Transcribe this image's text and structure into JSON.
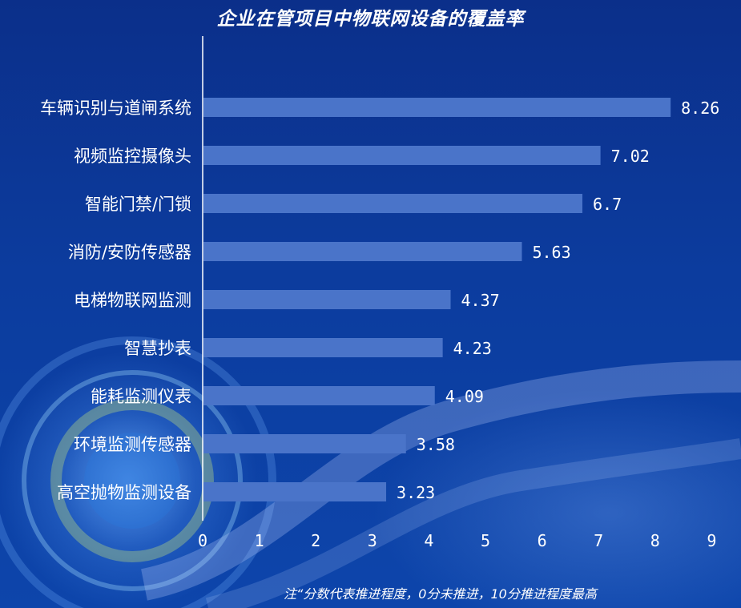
{
  "chart_data": {
    "type": "bar",
    "orientation": "horizontal",
    "title": "企业在管项目中物联网设备的覆盖率",
    "categories": [
      "车辆识别与道闸系统",
      "视频监控摄像头",
      "智能门禁/门锁",
      "消防/安防传感器",
      "电梯物联网监测",
      "智慧抄表",
      "能耗监测仪表",
      "环境监测传感器",
      "高空抛物监测设备"
    ],
    "values": [
      8.26,
      7.02,
      6.7,
      5.63,
      4.37,
      4.23,
      4.09,
      3.58,
      3.23
    ],
    "value_labels": [
      "8.26",
      "7.02",
      "6.7",
      "5.63",
      "4.37",
      "4.23",
      "4.09",
      "3.58",
      "3.23"
    ],
    "xlim": [
      0,
      9
    ],
    "xticks": [
      "0",
      "1",
      "2",
      "3",
      "4",
      "5",
      "6",
      "7",
      "8",
      "9"
    ],
    "xlabel": "",
    "ylabel": "",
    "grid": false,
    "bar_color": "#4a74c9"
  },
  "note": "注“分数代表推进程度，0分未推进，10分推进程度最高"
}
